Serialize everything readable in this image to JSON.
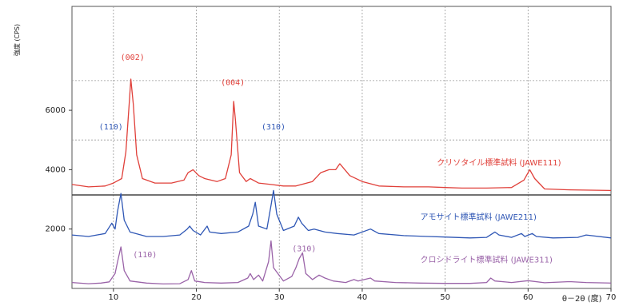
{
  "chart_data": {
    "type": "line",
    "title": "",
    "ylabel": "強度 (CPS)",
    "xlabel": "θ－2θ (度)",
    "xlim": [
      5,
      70
    ],
    "ylim": [
      0,
      9500
    ],
    "x_ticks": [
      10,
      20,
      30,
      40,
      50,
      60,
      70
    ],
    "y_ticks": [
      2000,
      4000,
      6000
    ],
    "grid": true,
    "series": [
      {
        "name": "クリソタイル標準試料 (JAWE111)",
        "color": "#e0403a",
        "points": [
          [
            5,
            3500
          ],
          [
            7,
            3420
          ],
          [
            9,
            3450
          ],
          [
            10,
            3550
          ],
          [
            11,
            3700
          ],
          [
            11.5,
            4600
          ],
          [
            11.9,
            6200
          ],
          [
            12.1,
            7050
          ],
          [
            12.4,
            6200
          ],
          [
            12.8,
            4500
          ],
          [
            13.5,
            3700
          ],
          [
            15,
            3550
          ],
          [
            17,
            3550
          ],
          [
            18.5,
            3650
          ],
          [
            19,
            3900
          ],
          [
            19.6,
            4000
          ],
          [
            20.3,
            3800
          ],
          [
            21,
            3700
          ],
          [
            22.5,
            3600
          ],
          [
            23.5,
            3700
          ],
          [
            24.2,
            4500
          ],
          [
            24.5,
            6300
          ],
          [
            24.7,
            5700
          ],
          [
            25.2,
            3900
          ],
          [
            26,
            3600
          ],
          [
            26.5,
            3700
          ],
          [
            27.5,
            3550
          ],
          [
            29,
            3500
          ],
          [
            30.5,
            3450
          ],
          [
            32,
            3450
          ],
          [
            34,
            3600
          ],
          [
            35,
            3900
          ],
          [
            36,
            4000
          ],
          [
            36.8,
            4000
          ],
          [
            37.3,
            4200
          ],
          [
            38.5,
            3800
          ],
          [
            40,
            3600
          ],
          [
            42,
            3450
          ],
          [
            45,
            3420
          ],
          [
            48,
            3420
          ],
          [
            50,
            3400
          ],
          [
            52,
            3380
          ],
          [
            55,
            3380
          ],
          [
            58,
            3400
          ],
          [
            59.5,
            3650
          ],
          [
            60.2,
            4000
          ],
          [
            60.8,
            3700
          ],
          [
            62,
            3350
          ],
          [
            65,
            3320
          ],
          [
            70,
            3300
          ]
        ]
      },
      {
        "name": "アモサイト標準試料 (JAWE211)",
        "color": "#2f57b5",
        "points": [
          [
            5,
            1800
          ],
          [
            7,
            1750
          ],
          [
            8,
            1800
          ],
          [
            9,
            1850
          ],
          [
            9.8,
            2200
          ],
          [
            10.2,
            2000
          ],
          [
            10.5,
            2600
          ],
          [
            10.9,
            3200
          ],
          [
            11.3,
            2300
          ],
          [
            12,
            1900
          ],
          [
            14,
            1750
          ],
          [
            16,
            1750
          ],
          [
            18,
            1800
          ],
          [
            18.9,
            2000
          ],
          [
            19.2,
            2100
          ],
          [
            19.6,
            1950
          ],
          [
            20.5,
            1800
          ],
          [
            21.3,
            2100
          ],
          [
            21.6,
            1900
          ],
          [
            23,
            1850
          ],
          [
            25,
            1900
          ],
          [
            26.3,
            2100
          ],
          [
            26.8,
            2500
          ],
          [
            27.1,
            2900
          ],
          [
            27.5,
            2100
          ],
          [
            28.5,
            2000
          ],
          [
            29,
            2800
          ],
          [
            29.3,
            3300
          ],
          [
            29.7,
            2500
          ],
          [
            30.5,
            1950
          ],
          [
            31.8,
            2100
          ],
          [
            32.3,
            2400
          ],
          [
            32.7,
            2200
          ],
          [
            33.5,
            1950
          ],
          [
            34.2,
            2000
          ],
          [
            35.5,
            1900
          ],
          [
            37,
            1850
          ],
          [
            39,
            1800
          ],
          [
            41,
            2000
          ],
          [
            42,
            1850
          ],
          [
            45,
            1780
          ],
          [
            48,
            1750
          ],
          [
            50,
            1730
          ],
          [
            53,
            1700
          ],
          [
            55,
            1720
          ],
          [
            56,
            1900
          ],
          [
            56.5,
            1800
          ],
          [
            58,
            1720
          ],
          [
            59.2,
            1850
          ],
          [
            59.6,
            1750
          ],
          [
            60.5,
            1850
          ],
          [
            61,
            1750
          ],
          [
            63,
            1700
          ],
          [
            66,
            1720
          ],
          [
            67,
            1800
          ],
          [
            70,
            1700
          ]
        ]
      },
      {
        "name": "クロシドライト標準試料 (JAWE311)",
        "color": "#9a63a8",
        "points": [
          [
            5,
            200
          ],
          [
            7,
            160
          ],
          [
            8.5,
            180
          ],
          [
            9.5,
            220
          ],
          [
            10.2,
            500
          ],
          [
            10.5,
            900
          ],
          [
            10.9,
            1400
          ],
          [
            11.3,
            600
          ],
          [
            12,
            250
          ],
          [
            14,
            180
          ],
          [
            16,
            150
          ],
          [
            18,
            160
          ],
          [
            19,
            300
          ],
          [
            19.4,
            600
          ],
          [
            19.8,
            250
          ],
          [
            21,
            200
          ],
          [
            23,
            180
          ],
          [
            25,
            200
          ],
          [
            26.2,
            350
          ],
          [
            26.5,
            500
          ],
          [
            26.9,
            300
          ],
          [
            27.5,
            450
          ],
          [
            28,
            250
          ],
          [
            28.7,
            900
          ],
          [
            29,
            1600
          ],
          [
            29.3,
            700
          ],
          [
            30.5,
            250
          ],
          [
            31.5,
            400
          ],
          [
            32,
            700
          ],
          [
            32.4,
            1000
          ],
          [
            32.8,
            1200
          ],
          [
            33.2,
            500
          ],
          [
            34,
            300
          ],
          [
            34.8,
            450
          ],
          [
            35.5,
            350
          ],
          [
            36.5,
            250
          ],
          [
            38,
            200
          ],
          [
            39,
            300
          ],
          [
            39.5,
            250
          ],
          [
            41,
            350
          ],
          [
            41.5,
            250
          ],
          [
            44,
            200
          ],
          [
            47,
            180
          ],
          [
            50,
            170
          ],
          [
            53,
            170
          ],
          [
            55,
            200
          ],
          [
            55.5,
            350
          ],
          [
            56,
            250
          ],
          [
            58,
            200
          ],
          [
            60,
            260
          ],
          [
            62,
            190
          ],
          [
            65,
            230
          ],
          [
            67,
            200
          ],
          [
            70,
            180
          ]
        ]
      }
    ],
    "annotations": [
      {
        "text": "(110)",
        "x": 9.7,
        "y": 5350,
        "color": "#2f57b5"
      },
      {
        "text": "(002)",
        "x": 12.3,
        "y": 7700,
        "color": "#e0403a"
      },
      {
        "text": "(004)",
        "x": 24.4,
        "y": 6850,
        "color": "#e0403a"
      },
      {
        "text": "(310)",
        "x": 29.3,
        "y": 5350,
        "color": "#2f57b5"
      },
      {
        "text": "(110)",
        "x": 13.8,
        "y": 1050,
        "color": "#9a63a8"
      },
      {
        "text": "(310)",
        "x": 33.0,
        "y": 1250,
        "color": "#9a63a8"
      }
    ],
    "series_labels": [
      {
        "x": 49,
        "y": 4150,
        "color": "#e0403a"
      },
      {
        "x": 47,
        "y": 2320,
        "color": "#2f57b5"
      },
      {
        "x": 47,
        "y": 870,
        "color": "#9a63a8"
      }
    ]
  }
}
